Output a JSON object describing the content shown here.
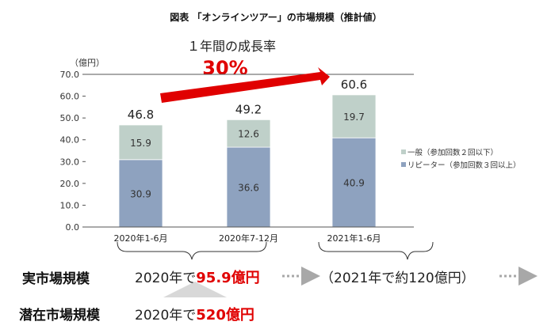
{
  "chart_data": {
    "type": "bar",
    "stacked": true,
    "title": "図表 「オンラインツアー」の市場規模（推計値）",
    "ylabel": "（億円）",
    "ylim": [
      0,
      70
    ],
    "yticks": [
      "70.0",
      "60.0",
      "50.0",
      "40.0",
      "30.0",
      "20.0",
      "10.0",
      "0.0"
    ],
    "grid": false,
    "legend_position": "right",
    "categories": [
      "2020年1-6月",
      "2020年7-12月",
      "2021年1-6月"
    ],
    "series": [
      {
        "name": "リピーター（参加回数３回以上）",
        "values": [
          30.9,
          36.6,
          40.9
        ],
        "color": "#8ea2bf"
      },
      {
        "name": "一般（参加回数２回以下）",
        "values": [
          15.9,
          12.6,
          19.7
        ],
        "color": "#bfd0c9"
      }
    ],
    "totals": [
      46.8,
      49.2,
      60.6
    ],
    "annotation": {
      "label": "１年間の成長率",
      "value": "30%",
      "color": "#e00000"
    }
  },
  "summary": {
    "actual": {
      "label": "実市場規模",
      "prefix": "2020年で",
      "value": "95.9億円",
      "forecast": "（2021年で約120億円）"
    },
    "potential": {
      "label": "潜在市場規模",
      "prefix": "2020年で",
      "value": "520億円"
    }
  }
}
